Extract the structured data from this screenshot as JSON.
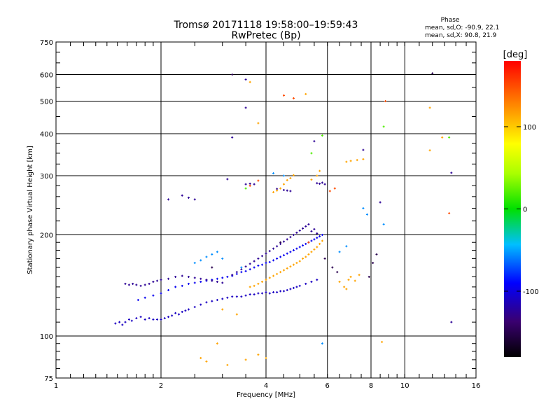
{
  "chart_data": {
    "type": "scatter",
    "title": "Tromsø 20171118 19:58:00–19:59:43",
    "subtitle": "RwPretec (Bp)",
    "xlabel": "Frequency [MHz]",
    "ylabel": "Stationary phase Virtual Height [km]",
    "x_scale": "log",
    "y_scale": "log",
    "xlim": [
      1,
      16
    ],
    "ylim": [
      75,
      750
    ],
    "x_ticks": [
      1,
      2,
      4,
      6,
      8,
      10,
      16
    ],
    "x_tick_labels": [
      "1",
      "2",
      "4",
      "6",
      "8",
      "10",
      "16"
    ],
    "x_grid": [
      2,
      4,
      6,
      8,
      10
    ],
    "y_ticks": [
      75,
      100,
      200,
      300,
      400,
      500,
      600,
      750
    ],
    "y_tick_labels": [
      "75",
      "100",
      "200",
      "300",
      "400",
      "500",
      "600",
      "750"
    ],
    "y_grid": [
      100,
      200,
      300,
      400,
      500,
      600
    ],
    "grid": true,
    "stats": {
      "heading": "Phase",
      "line_o": "mean, sd,O: -90.9, 22.1",
      "line_x": "mean, sd,X:  90.8, 21.9"
    },
    "colorbar": {
      "label": "[deg]",
      "range": [
        -180,
        180
      ],
      "ticks": [
        100,
        0,
        -100
      ],
      "tick_labels": [
        "100",
        "0",
        "-100"
      ]
    },
    "series": [
      {
        "phase": -110,
        "points": [
          [
            1.48,
            109
          ],
          [
            1.52,
            110
          ],
          [
            1.55,
            108
          ],
          [
            1.58,
            110
          ],
          [
            1.62,
            112
          ],
          [
            1.65,
            111
          ],
          [
            1.7,
            113
          ],
          [
            1.75,
            114
          ],
          [
            1.8,
            112
          ],
          [
            1.85,
            113
          ],
          [
            1.9,
            112
          ],
          [
            1.95,
            112
          ],
          [
            2.0,
            112
          ],
          [
            2.05,
            113
          ],
          [
            2.1,
            114
          ],
          [
            2.15,
            115
          ],
          [
            2.2,
            117
          ],
          [
            2.25,
            116
          ],
          [
            2.3,
            118
          ],
          [
            2.35,
            119
          ],
          [
            2.4,
            120
          ],
          [
            2.5,
            122
          ],
          [
            2.6,
            124
          ],
          [
            2.7,
            126
          ],
          [
            2.8,
            127
          ],
          [
            2.9,
            128
          ],
          [
            3.0,
            129
          ],
          [
            3.1,
            130
          ],
          [
            3.2,
            131
          ],
          [
            3.3,
            131
          ],
          [
            3.4,
            131
          ],
          [
            3.5,
            132
          ],
          [
            3.6,
            133
          ],
          [
            3.7,
            133
          ],
          [
            3.8,
            134
          ],
          [
            3.9,
            134
          ],
          [
            4.0,
            135
          ],
          [
            4.1,
            134
          ],
          [
            4.2,
            135
          ],
          [
            4.3,
            135
          ],
          [
            4.4,
            136
          ],
          [
            4.5,
            136
          ],
          [
            4.6,
            137
          ],
          [
            4.7,
            138
          ],
          [
            4.8,
            139
          ],
          [
            4.9,
            140
          ],
          [
            5.0,
            141
          ],
          [
            5.2,
            143
          ],
          [
            5.4,
            145
          ],
          [
            5.6,
            147
          ]
        ]
      },
      {
        "phase": -95,
        "points": [
          [
            1.72,
            128
          ],
          [
            1.8,
            130
          ],
          [
            1.9,
            132
          ],
          [
            2.0,
            134
          ],
          [
            2.1,
            137
          ],
          [
            2.2,
            140
          ],
          [
            2.3,
            141
          ],
          [
            2.4,
            143
          ],
          [
            2.5,
            144
          ],
          [
            2.6,
            145
          ],
          [
            2.7,
            146
          ],
          [
            2.8,
            147
          ],
          [
            2.9,
            148
          ],
          [
            3.0,
            149
          ],
          [
            3.1,
            150
          ],
          [
            3.2,
            151
          ],
          [
            3.3,
            153
          ],
          [
            3.4,
            155
          ],
          [
            3.5,
            156
          ],
          [
            3.6,
            158
          ],
          [
            3.7,
            160
          ],
          [
            3.8,
            162
          ],
          [
            3.9,
            163
          ],
          [
            4.0,
            165
          ],
          [
            4.1,
            166
          ],
          [
            4.2,
            168
          ],
          [
            4.3,
            170
          ],
          [
            4.4,
            172
          ],
          [
            4.5,
            174
          ],
          [
            4.6,
            176
          ],
          [
            4.7,
            178
          ],
          [
            4.8,
            180
          ],
          [
            4.9,
            182
          ],
          [
            5.0,
            184
          ],
          [
            5.1,
            186
          ],
          [
            5.2,
            188
          ],
          [
            5.3,
            190
          ],
          [
            5.4,
            192
          ],
          [
            5.5,
            194
          ],
          [
            5.6,
            196
          ],
          [
            5.7,
            198
          ],
          [
            5.8,
            200
          ]
        ]
      },
      {
        "phase": -125,
        "points": [
          [
            1.58,
            143
          ],
          [
            1.62,
            142
          ],
          [
            1.66,
            143
          ],
          [
            1.7,
            142
          ],
          [
            1.75,
            141
          ],
          [
            1.8,
            142
          ],
          [
            1.85,
            143
          ],
          [
            1.9,
            145
          ],
          [
            1.95,
            146
          ],
          [
            2.0,
            147
          ],
          [
            2.1,
            148
          ],
          [
            2.2,
            150
          ],
          [
            2.3,
            151
          ],
          [
            2.4,
            150
          ],
          [
            2.5,
            149
          ],
          [
            2.6,
            148
          ],
          [
            2.7,
            147
          ],
          [
            2.8,
            146
          ],
          [
            2.9,
            145
          ],
          [
            3.0,
            144
          ],
          [
            3.2,
            152
          ],
          [
            3.3,
            155
          ],
          [
            3.4,
            158
          ],
          [
            3.5,
            161
          ],
          [
            3.6,
            164
          ],
          [
            3.7,
            167
          ],
          [
            3.8,
            170
          ],
          [
            3.9,
            173
          ],
          [
            4.0,
            176
          ],
          [
            4.1,
            179
          ],
          [
            4.2,
            182
          ],
          [
            4.3,
            185
          ],
          [
            4.4,
            188
          ],
          [
            4.5,
            191
          ],
          [
            4.6,
            194
          ],
          [
            4.7,
            197
          ],
          [
            4.8,
            200
          ],
          [
            4.9,
            203
          ],
          [
            5.0,
            206
          ],
          [
            5.1,
            209
          ],
          [
            5.2,
            212
          ],
          [
            5.3,
            215
          ],
          [
            5.4,
            205
          ],
          [
            5.5,
            208
          ],
          [
            5.6,
            202
          ],
          [
            3.5,
            283
          ],
          [
            3.6,
            284
          ],
          [
            3.7,
            283
          ],
          [
            4.3,
            274
          ],
          [
            4.5,
            272
          ],
          [
            4.6,
            271
          ],
          [
            4.7,
            270
          ],
          [
            5.6,
            285
          ],
          [
            5.7,
            284
          ],
          [
            5.8,
            286
          ],
          [
            5.9,
            283
          ],
          [
            2.4,
            258
          ],
          [
            2.5,
            255
          ],
          [
            2.3,
            262
          ],
          [
            3.5,
            580
          ],
          [
            3.5,
            478
          ],
          [
            3.2,
            390
          ],
          [
            5.5,
            380
          ],
          [
            7.6,
            358
          ],
          [
            8.5,
            250
          ],
          [
            13.6,
            306
          ],
          [
            13.6,
            110
          ],
          [
            3.1,
            293
          ],
          [
            2.1,
            255
          ]
        ]
      },
      {
        "phase": 115,
        "points": [
          [
            3.6,
            140
          ],
          [
            3.7,
            141
          ],
          [
            3.8,
            143
          ],
          [
            3.9,
            145
          ],
          [
            4.0,
            147
          ],
          [
            4.1,
            149
          ],
          [
            4.2,
            151
          ],
          [
            4.3,
            153
          ],
          [
            4.4,
            155
          ],
          [
            4.5,
            157
          ],
          [
            4.6,
            159
          ],
          [
            4.7,
            161
          ],
          [
            4.8,
            163
          ],
          [
            4.9,
            165
          ],
          [
            5.0,
            167
          ],
          [
            5.1,
            170
          ],
          [
            5.2,
            172
          ],
          [
            5.3,
            175
          ],
          [
            5.4,
            178
          ],
          [
            5.5,
            181
          ],
          [
            5.6,
            184
          ],
          [
            5.7,
            188
          ],
          [
            5.8,
            192
          ],
          [
            4.2,
            268
          ],
          [
            4.3,
            271
          ],
          [
            4.4,
            275
          ],
          [
            4.5,
            283
          ],
          [
            4.6,
            291
          ],
          [
            4.7,
            295
          ],
          [
            4.8,
            301
          ],
          [
            5.4,
            292
          ],
          [
            5.6,
            300
          ],
          [
            5.7,
            310
          ],
          [
            6.8,
            330
          ],
          [
            7.0,
            332
          ],
          [
            7.3,
            334
          ],
          [
            7.6,
            336
          ],
          [
            2.6,
            86
          ],
          [
            2.7,
            84
          ],
          [
            2.9,
            95
          ],
          [
            3.1,
            82
          ],
          [
            3.5,
            85
          ],
          [
            3.8,
            88
          ],
          [
            4.0,
            86
          ],
          [
            3.6,
            570
          ],
          [
            5.2,
            525
          ],
          [
            3.8,
            430
          ],
          [
            11.8,
            478
          ],
          [
            11.8,
            357
          ],
          [
            12.8,
            390
          ],
          [
            3.0,
            120
          ],
          [
            3.3,
            116
          ],
          [
            6.5,
            145
          ],
          [
            6.7,
            140
          ],
          [
            6.9,
            147
          ],
          [
            7.0,
            150
          ],
          [
            7.2,
            146
          ],
          [
            7.4,
            152
          ],
          [
            6.8,
            138
          ],
          [
            8.6,
            96
          ]
        ]
      },
      {
        "phase": 20,
        "points": [
          [
            3.5,
            275
          ],
          [
            5.4,
            350
          ],
          [
            5.8,
            395
          ],
          [
            8.7,
            420
          ],
          [
            13.4,
            390
          ]
        ]
      },
      {
        "phase": -55,
        "points": [
          [
            2.5,
            165
          ],
          [
            2.6,
            168
          ],
          [
            2.7,
            172
          ],
          [
            2.8,
            175
          ],
          [
            2.9,
            178
          ],
          [
            3.0,
            170
          ],
          [
            3.4,
            160
          ],
          [
            4.2,
            305
          ],
          [
            4.5,
            300
          ],
          [
            5.8,
            95
          ],
          [
            7.6,
            240
          ],
          [
            7.8,
            230
          ],
          [
            8.7,
            215
          ],
          [
            6.8,
            185
          ],
          [
            6.5,
            178
          ]
        ]
      },
      {
        "phase": 150,
        "points": [
          [
            4.5,
            520
          ],
          [
            4.8,
            510
          ],
          [
            6.1,
            270
          ],
          [
            6.3,
            275
          ],
          [
            5.3,
            190
          ],
          [
            13.4,
            232
          ],
          [
            8.8,
            500
          ],
          [
            3.6,
            280
          ],
          [
            3.8,
            290
          ]
        ]
      },
      {
        "phase": -150,
        "points": [
          [
            12,
            605
          ],
          [
            3.2,
            600
          ],
          [
            5.9,
            170
          ],
          [
            6.2,
            160
          ],
          [
            6.4,
            155
          ],
          [
            4.4,
            190
          ],
          [
            2.8,
            160
          ],
          [
            8.3,
            175
          ],
          [
            8.1,
            165
          ],
          [
            7.9,
            150
          ]
        ]
      }
    ]
  }
}
